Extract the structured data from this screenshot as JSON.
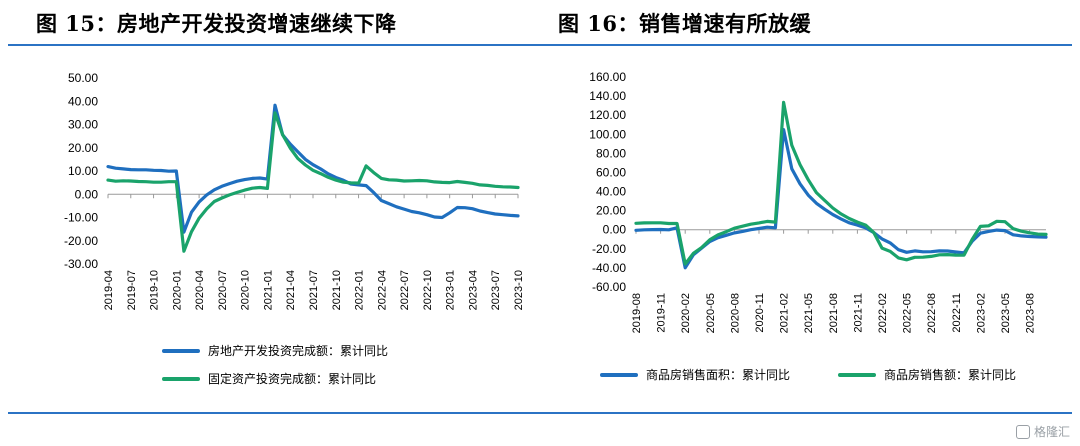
{
  "titles": {
    "left": "图 15：房地产开发投资增速继续下降",
    "right": "图 16：销售增速有所放缓"
  },
  "colors": {
    "blue": "#1f6fbf",
    "green": "#1aa36b",
    "rule": "#2b73c4"
  },
  "watermark": "格隆汇",
  "chart_data": [
    {
      "type": "line",
      "title": "图 15：房地产开发投资增速继续下降",
      "xticks": [
        "2019-04",
        "2019-07",
        "2019-10",
        "2020-01",
        "2020-04",
        "2020-07",
        "2020-10",
        "2021-01",
        "2021-04",
        "2021-07",
        "2021-10",
        "2022-01",
        "2022-04",
        "2022-07",
        "2022-10",
        "2023-01",
        "2023-04",
        "2023-07",
        "2023-10"
      ],
      "ylim": [
        -30,
        50
      ],
      "yticks": [
        -30,
        -20,
        -10,
        0,
        10,
        20,
        30,
        40,
        50
      ],
      "ytick_labels": [
        "-30.00",
        "-20.00",
        "-10.00",
        "0.00",
        "10.00",
        "20.00",
        "30.00",
        "40.00",
        "50.00"
      ],
      "legend_position": "bottom",
      "series": [
        {
          "name": "房地产开发投资完成额：累计同比",
          "color": "#1f6fbf",
          "points": [
            [
              "2019-04",
              11.9
            ],
            [
              "2019-05",
              11.2
            ],
            [
              "2019-06",
              10.9
            ],
            [
              "2019-07",
              10.6
            ],
            [
              "2019-08",
              10.5
            ],
            [
              "2019-09",
              10.5
            ],
            [
              "2019-10",
              10.3
            ],
            [
              "2019-11",
              10.2
            ],
            [
              "2019-12",
              9.9
            ],
            [
              "2020-01",
              10.0
            ],
            [
              "2020-02",
              -16.3
            ],
            [
              "2020-03",
              -7.7
            ],
            [
              "2020-04",
              -3.3
            ],
            [
              "2020-05",
              -0.3
            ],
            [
              "2020-06",
              1.9
            ],
            [
              "2020-07",
              3.4
            ],
            [
              "2020-08",
              4.6
            ],
            [
              "2020-09",
              5.6
            ],
            [
              "2020-10",
              6.3
            ],
            [
              "2020-11",
              6.8
            ],
            [
              "2020-12",
              7.0
            ],
            [
              "2021-01",
              6.5
            ],
            [
              "2021-02",
              38.3
            ],
            [
              "2021-03",
              25.6
            ],
            [
              "2021-04",
              21.6
            ],
            [
              "2021-05",
              18.3
            ],
            [
              "2021-06",
              15.0
            ],
            [
              "2021-07",
              12.7
            ],
            [
              "2021-08",
              10.9
            ],
            [
              "2021-09",
              8.8
            ],
            [
              "2021-10",
              7.2
            ],
            [
              "2021-11",
              6.0
            ],
            [
              "2021-12",
              4.4
            ],
            [
              "2022-01",
              4.0
            ],
            [
              "2022-02",
              3.7
            ],
            [
              "2022-03",
              0.7
            ],
            [
              "2022-04",
              -2.7
            ],
            [
              "2022-05",
              -4.0
            ],
            [
              "2022-06",
              -5.4
            ],
            [
              "2022-07",
              -6.4
            ],
            [
              "2022-08",
              -7.4
            ],
            [
              "2022-09",
              -8.0
            ],
            [
              "2022-10",
              -8.8
            ],
            [
              "2022-11",
              -9.8
            ],
            [
              "2022-12",
              -10.0
            ],
            [
              "2023-01",
              -8.0
            ],
            [
              "2023-02",
              -5.7
            ],
            [
              "2023-03",
              -5.8
            ],
            [
              "2023-04",
              -6.2
            ],
            [
              "2023-05",
              -7.2
            ],
            [
              "2023-06",
              -7.9
            ],
            [
              "2023-07",
              -8.5
            ],
            [
              "2023-08",
              -8.8
            ],
            [
              "2023-09",
              -9.1
            ],
            [
              "2023-10",
              -9.3
            ]
          ]
        },
        {
          "name": "固定资产投资完成额：累计同比",
          "color": "#1aa36b",
          "points": [
            [
              "2019-04",
              6.1
            ],
            [
              "2019-05",
              5.6
            ],
            [
              "2019-06",
              5.8
            ],
            [
              "2019-07",
              5.7
            ],
            [
              "2019-08",
              5.5
            ],
            [
              "2019-09",
              5.4
            ],
            [
              "2019-10",
              5.2
            ],
            [
              "2019-11",
              5.2
            ],
            [
              "2019-12",
              5.4
            ],
            [
              "2020-01",
              5.4
            ],
            [
              "2020-02",
              -24.5
            ],
            [
              "2020-03",
              -16.1
            ],
            [
              "2020-04",
              -10.3
            ],
            [
              "2020-05",
              -6.3
            ],
            [
              "2020-06",
              -3.1
            ],
            [
              "2020-07",
              -1.6
            ],
            [
              "2020-08",
              -0.3
            ],
            [
              "2020-09",
              0.8
            ],
            [
              "2020-10",
              1.8
            ],
            [
              "2020-11",
              2.6
            ],
            [
              "2020-12",
              2.9
            ],
            [
              "2021-01",
              2.5
            ],
            [
              "2021-02",
              35.0
            ],
            [
              "2021-03",
              25.6
            ],
            [
              "2021-04",
              19.9
            ],
            [
              "2021-05",
              15.4
            ],
            [
              "2021-06",
              12.6
            ],
            [
              "2021-07",
              10.3
            ],
            [
              "2021-08",
              8.9
            ],
            [
              "2021-09",
              7.3
            ],
            [
              "2021-10",
              6.1
            ],
            [
              "2021-11",
              5.2
            ],
            [
              "2021-12",
              4.9
            ],
            [
              "2022-01",
              4.8
            ],
            [
              "2022-02",
              12.2
            ],
            [
              "2022-03",
              9.3
            ],
            [
              "2022-04",
              6.8
            ],
            [
              "2022-05",
              6.2
            ],
            [
              "2022-06",
              6.1
            ],
            [
              "2022-07",
              5.7
            ],
            [
              "2022-08",
              5.8
            ],
            [
              "2022-09",
              5.9
            ],
            [
              "2022-10",
              5.8
            ],
            [
              "2022-11",
              5.3
            ],
            [
              "2022-12",
              5.1
            ],
            [
              "2023-01",
              5.0
            ],
            [
              "2023-02",
              5.5
            ],
            [
              "2023-03",
              5.1
            ],
            [
              "2023-04",
              4.7
            ],
            [
              "2023-05",
              4.0
            ],
            [
              "2023-06",
              3.8
            ],
            [
              "2023-07",
              3.4
            ],
            [
              "2023-08",
              3.2
            ],
            [
              "2023-09",
              3.1
            ],
            [
              "2023-10",
              2.9
            ]
          ]
        }
      ]
    },
    {
      "type": "line",
      "title": "图 16：销售增速有所放缓",
      "xticks": [
        "2019-08",
        "2019-11",
        "2020-02",
        "2020-05",
        "2020-08",
        "2020-11",
        "2021-02",
        "2021-05",
        "2021-08",
        "2021-11",
        "2022-02",
        "2022-05",
        "2022-08",
        "2022-11",
        "2023-02",
        "2023-05",
        "2023-08"
      ],
      "ylim": [
        -60,
        160
      ],
      "yticks": [
        -60,
        -40,
        -20,
        0,
        20,
        40,
        60,
        80,
        100,
        120,
        140,
        160
      ],
      "ytick_labels": [
        "-60.00",
        "-40.00",
        "-20.00",
        "0.00",
        "20.00",
        "40.00",
        "60.00",
        "80.00",
        "100.00",
        "120.00",
        "140.00",
        "160.00"
      ],
      "legend_position": "bottom",
      "series": [
        {
          "name": "商品房销售面积：累计同比",
          "color": "#1f6fbf",
          "points": [
            [
              "2019-08",
              -0.6
            ],
            [
              "2019-09",
              -0.1
            ],
            [
              "2019-10",
              0.1
            ],
            [
              "2019-11",
              0.2
            ],
            [
              "2019-12",
              -0.1
            ],
            [
              "2020-01",
              2.0
            ],
            [
              "2020-02",
              -39.9
            ],
            [
              "2020-03",
              -26.3
            ],
            [
              "2020-04",
              -19.3
            ],
            [
              "2020-05",
              -12.3
            ],
            [
              "2020-06",
              -8.4
            ],
            [
              "2020-07",
              -5.8
            ],
            [
              "2020-08",
              -3.3
            ],
            [
              "2020-09",
              -1.8
            ],
            [
              "2020-10",
              0.0
            ],
            [
              "2020-11",
              1.3
            ],
            [
              "2020-12",
              2.6
            ],
            [
              "2021-01",
              2.0
            ],
            [
              "2021-02",
              104.9
            ],
            [
              "2021-03",
              63.8
            ],
            [
              "2021-04",
              48.1
            ],
            [
              "2021-05",
              36.3
            ],
            [
              "2021-06",
              27.7
            ],
            [
              "2021-07",
              21.5
            ],
            [
              "2021-08",
              15.9
            ],
            [
              "2021-09",
              11.3
            ],
            [
              "2021-10",
              7.3
            ],
            [
              "2021-11",
              4.8
            ],
            [
              "2021-12",
              1.9
            ],
            [
              "2022-01",
              -3.0
            ],
            [
              "2022-02",
              -9.6
            ],
            [
              "2022-03",
              -13.8
            ],
            [
              "2022-04",
              -20.9
            ],
            [
              "2022-05",
              -23.6
            ],
            [
              "2022-06",
              -22.2
            ],
            [
              "2022-07",
              -23.1
            ],
            [
              "2022-08",
              -23.0
            ],
            [
              "2022-09",
              -22.2
            ],
            [
              "2022-10",
              -22.3
            ],
            [
              "2022-11",
              -23.3
            ],
            [
              "2022-12",
              -24.3
            ],
            [
              "2023-01",
              -12.0
            ],
            [
              "2023-02",
              -3.6
            ],
            [
              "2023-03",
              -1.8
            ],
            [
              "2023-04",
              -0.4
            ],
            [
              "2023-05",
              -0.9
            ],
            [
              "2023-06",
              -5.3
            ],
            [
              "2023-07",
              -6.5
            ],
            [
              "2023-08",
              -7.1
            ],
            [
              "2023-09",
              -7.5
            ],
            [
              "2023-10",
              -7.8
            ]
          ]
        },
        {
          "name": "商品房销售额：累计同比",
          "color": "#1aa36b",
          "points": [
            [
              "2019-08",
              6.7
            ],
            [
              "2019-09",
              7.1
            ],
            [
              "2019-10",
              7.3
            ],
            [
              "2019-11",
              7.3
            ],
            [
              "2019-12",
              6.5
            ],
            [
              "2020-01",
              6.5
            ],
            [
              "2020-02",
              -35.9
            ],
            [
              "2020-03",
              -24.7
            ],
            [
              "2020-04",
              -18.6
            ],
            [
              "2020-05",
              -10.6
            ],
            [
              "2020-06",
              -5.4
            ],
            [
              "2020-07",
              -2.1
            ],
            [
              "2020-08",
              1.6
            ],
            [
              "2020-09",
              3.7
            ],
            [
              "2020-10",
              5.8
            ],
            [
              "2020-11",
              7.2
            ],
            [
              "2020-12",
              8.7
            ],
            [
              "2021-01",
              8.0
            ],
            [
              "2021-02",
              133.4
            ],
            [
              "2021-03",
              88.5
            ],
            [
              "2021-04",
              68.2
            ],
            [
              "2021-05",
              52.4
            ],
            [
              "2021-06",
              38.9
            ],
            [
              "2021-07",
              30.7
            ],
            [
              "2021-08",
              22.8
            ],
            [
              "2021-09",
              16.6
            ],
            [
              "2021-10",
              11.8
            ],
            [
              "2021-11",
              8.0
            ],
            [
              "2021-12",
              4.8
            ],
            [
              "2022-01",
              -3.0
            ],
            [
              "2022-02",
              -19.3
            ],
            [
              "2022-03",
              -22.7
            ],
            [
              "2022-04",
              -29.5
            ],
            [
              "2022-05",
              -31.5
            ],
            [
              "2022-06",
              -28.9
            ],
            [
              "2022-07",
              -28.8
            ],
            [
              "2022-08",
              -27.9
            ],
            [
              "2022-09",
              -26.3
            ],
            [
              "2022-10",
              -26.1
            ],
            [
              "2022-11",
              -26.6
            ],
            [
              "2022-12",
              -26.7
            ],
            [
              "2023-01",
              -10.0
            ],
            [
              "2023-02",
              3.5
            ],
            [
              "2023-03",
              4.1
            ],
            [
              "2023-04",
              8.8
            ],
            [
              "2023-05",
              8.4
            ],
            [
              "2023-06",
              1.1
            ],
            [
              "2023-07",
              -1.5
            ],
            [
              "2023-08",
              -3.2
            ],
            [
              "2023-09",
              -4.6
            ],
            [
              "2023-10",
              -4.9
            ]
          ]
        }
      ]
    }
  ]
}
